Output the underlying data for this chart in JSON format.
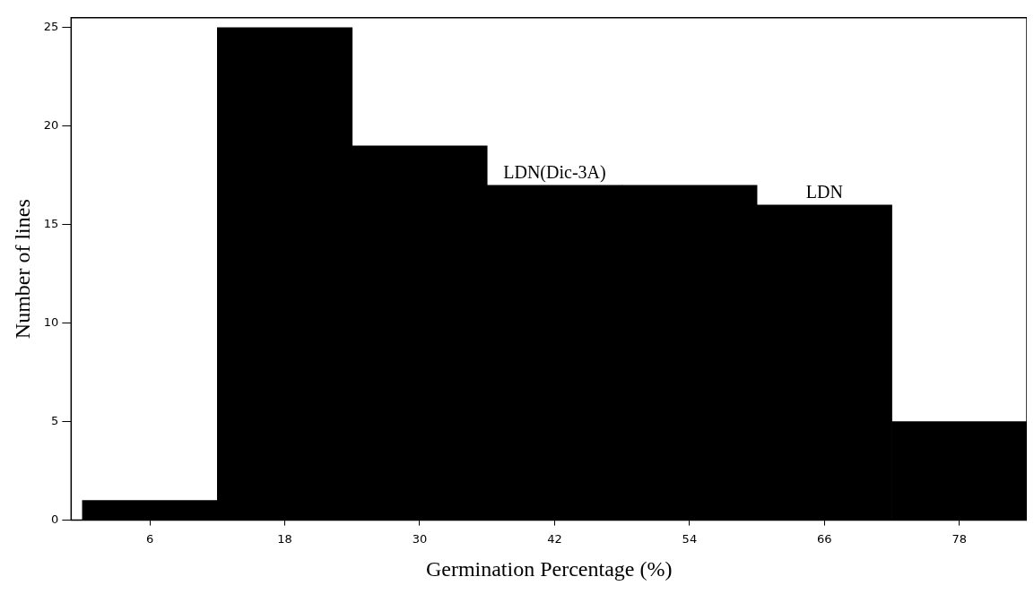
{
  "chart_data": {
    "type": "histogram",
    "xlabel": "Germination Percentage (%)",
    "ylabel": "Number of lines",
    "bins": [
      0,
      12,
      24,
      36,
      48,
      60,
      72,
      84
    ],
    "values": [
      1,
      25,
      19,
      17,
      17,
      16,
      5
    ],
    "color": "#000000",
    "xlim": [
      -1,
      84
    ],
    "xticks": [
      6,
      18,
      30,
      42,
      54,
      66,
      78
    ],
    "ylim": [
      0,
      25.5
    ],
    "yticks": [
      0,
      5,
      10,
      15,
      20,
      25
    ],
    "grid": false,
    "legend": false,
    "annotations": [
      {
        "text": "LDN(Dic-3A)",
        "x": 42,
        "y": 17
      },
      {
        "text": "LDN",
        "x": 66,
        "y": 16
      }
    ]
  }
}
